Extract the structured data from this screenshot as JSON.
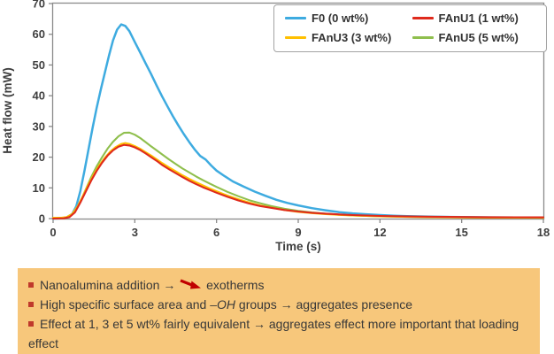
{
  "chart_data": {
    "type": "line",
    "title": "",
    "xlabel": "Time (s)",
    "ylabel": "Heat flow (mW)",
    "xlim": [
      0,
      18
    ],
    "ylim": [
      0,
      70
    ],
    "x_ticks": [
      0,
      3,
      6,
      9,
      12,
      15,
      18
    ],
    "y_ticks": [
      0,
      10,
      20,
      30,
      40,
      50,
      60,
      70
    ],
    "grid": false,
    "legend_position": "top-right",
    "series": [
      {
        "name": "F0 (0 wt%)",
        "color": "#3EABE0",
        "peak": {
          "t": 2.5,
          "value": 63
        },
        "points": [
          [
            0,
            0
          ],
          [
            0.3,
            0.1
          ],
          [
            0.5,
            0.4
          ],
          [
            0.7,
            1.5
          ],
          [
            0.85,
            4
          ],
          [
            1.0,
            9
          ],
          [
            1.15,
            15.5
          ],
          [
            1.3,
            22.5
          ],
          [
            1.45,
            29.5
          ],
          [
            1.6,
            36
          ],
          [
            1.75,
            42
          ],
          [
            1.9,
            47.5
          ],
          [
            2.05,
            53
          ],
          [
            2.2,
            58
          ],
          [
            2.35,
            61.5
          ],
          [
            2.5,
            63.2
          ],
          [
            2.65,
            62.7
          ],
          [
            2.8,
            61
          ],
          [
            3.0,
            57.5
          ],
          [
            3.2,
            54
          ],
          [
            3.4,
            50.5
          ],
          [
            3.6,
            47
          ],
          [
            3.8,
            43.3
          ],
          [
            4.0,
            39.8
          ],
          [
            4.2,
            36.5
          ],
          [
            4.4,
            33.3
          ],
          [
            4.6,
            30.3
          ],
          [
            4.8,
            27.5
          ],
          [
            5.0,
            24.9
          ],
          [
            5.2,
            22.5
          ],
          [
            5.4,
            20.4
          ],
          [
            5.6,
            19.2
          ],
          [
            5.8,
            17.3
          ],
          [
            6.0,
            15.6
          ],
          [
            6.3,
            13.8
          ],
          [
            6.6,
            12.1
          ],
          [
            7.0,
            10.4
          ],
          [
            7.4,
            8.8
          ],
          [
            7.8,
            7.4
          ],
          [
            8.2,
            6.1
          ],
          [
            8.6,
            5.1
          ],
          [
            9.0,
            4.3
          ],
          [
            9.5,
            3.4
          ],
          [
            10,
            2.7
          ],
          [
            10.5,
            2.1
          ],
          [
            11,
            1.7
          ],
          [
            11.5,
            1.4
          ],
          [
            12,
            1.15
          ],
          [
            12.5,
            0.95
          ],
          [
            13,
            0.8
          ],
          [
            14,
            0.6
          ],
          [
            15,
            0.5
          ],
          [
            16,
            0.4
          ],
          [
            17,
            0.35
          ],
          [
            18,
            0.3
          ]
        ]
      },
      {
        "name": "FAnU1 (1 wt%)",
        "color": "#DF2A1C",
        "peak": {
          "t": 2.6,
          "value": 24
        },
        "points": [
          [
            0,
            0
          ],
          [
            0.4,
            0.1
          ],
          [
            0.6,
            0.5
          ],
          [
            0.8,
            2
          ],
          [
            1.0,
            5.2
          ],
          [
            1.2,
            8.8
          ],
          [
            1.4,
            12.4
          ],
          [
            1.6,
            15.5
          ],
          [
            1.8,
            18.2
          ],
          [
            2.0,
            20.5
          ],
          [
            2.2,
            22.2
          ],
          [
            2.4,
            23.4
          ],
          [
            2.6,
            24
          ],
          [
            2.8,
            23.8
          ],
          [
            3.0,
            23.2
          ],
          [
            3.2,
            22.3
          ],
          [
            3.4,
            21.2
          ],
          [
            3.6,
            20
          ],
          [
            3.8,
            18.8
          ],
          [
            4.0,
            17.5
          ],
          [
            4.25,
            16.1
          ],
          [
            4.5,
            14.8
          ],
          [
            4.75,
            13.5
          ],
          [
            5.0,
            12.3
          ],
          [
            5.25,
            11.2
          ],
          [
            5.5,
            10.2
          ],
          [
            5.75,
            9.3
          ],
          [
            6.0,
            8.4
          ],
          [
            6.4,
            7.1
          ],
          [
            6.8,
            5.9
          ],
          [
            7.2,
            4.9
          ],
          [
            7.6,
            4.1
          ],
          [
            8.0,
            3.5
          ],
          [
            8.5,
            2.8
          ],
          [
            9.0,
            2.3
          ],
          [
            9.5,
            1.9
          ],
          [
            10,
            1.6
          ],
          [
            10.5,
            1.35
          ],
          [
            11,
            1.15
          ],
          [
            12,
            0.85
          ],
          [
            13,
            0.7
          ],
          [
            14,
            0.6
          ],
          [
            15,
            0.52
          ],
          [
            16,
            0.46
          ],
          [
            17,
            0.42
          ],
          [
            18,
            0.4
          ]
        ]
      },
      {
        "name": "FAnU3 (3 wt%)",
        "color": "#FFC000",
        "peak": {
          "t": 2.65,
          "value": 24.6
        },
        "points": [
          [
            0,
            0.3
          ],
          [
            0.3,
            0.3
          ],
          [
            0.5,
            0.5
          ],
          [
            0.7,
            1.5
          ],
          [
            0.9,
            4
          ],
          [
            1.1,
            7.5
          ],
          [
            1.3,
            11.2
          ],
          [
            1.5,
            14.5
          ],
          [
            1.7,
            17.4
          ],
          [
            1.9,
            19.8
          ],
          [
            2.1,
            21.8
          ],
          [
            2.3,
            23.3
          ],
          [
            2.5,
            24.3
          ],
          [
            2.65,
            24.6
          ],
          [
            2.8,
            24.3
          ],
          [
            3.0,
            23.6
          ],
          [
            3.2,
            22.7
          ],
          [
            3.4,
            21.6
          ],
          [
            3.6,
            20.5
          ],
          [
            3.8,
            19.3
          ],
          [
            4.0,
            18.1
          ],
          [
            4.25,
            16.7
          ],
          [
            4.5,
            15.4
          ],
          [
            4.75,
            14.1
          ],
          [
            5.0,
            12.9
          ],
          [
            5.25,
            11.8
          ],
          [
            5.5,
            10.8
          ],
          [
            5.75,
            9.8
          ],
          [
            6.0,
            8.9
          ],
          [
            6.4,
            7.5
          ],
          [
            6.8,
            6.3
          ],
          [
            7.2,
            5.2
          ],
          [
            7.6,
            4.3
          ],
          [
            8.0,
            3.6
          ],
          [
            8.5,
            2.8
          ],
          [
            9.0,
            2.2
          ],
          [
            9.5,
            1.8
          ],
          [
            10,
            1.45
          ],
          [
            10.5,
            1.2
          ],
          [
            11,
            1.0
          ],
          [
            12,
            0.72
          ],
          [
            13,
            0.56
          ],
          [
            14,
            0.45
          ],
          [
            15,
            0.38
          ],
          [
            16,
            0.32
          ],
          [
            17,
            0.28
          ],
          [
            18,
            0.25
          ]
        ]
      },
      {
        "name": "FAnU5 (5 wt%)",
        "color": "#8FBF4D",
        "peak": {
          "t": 2.8,
          "value": 28
        },
        "points": [
          [
            0,
            0
          ],
          [
            0.4,
            0.1
          ],
          [
            0.6,
            0.6
          ],
          [
            0.8,
            2.2
          ],
          [
            1.0,
            5.5
          ],
          [
            1.2,
            9.5
          ],
          [
            1.4,
            13.5
          ],
          [
            1.6,
            17
          ],
          [
            1.8,
            20
          ],
          [
            2.0,
            22.8
          ],
          [
            2.2,
            25
          ],
          [
            2.4,
            26.8
          ],
          [
            2.6,
            27.9
          ],
          [
            2.8,
            28
          ],
          [
            3.0,
            27.3
          ],
          [
            3.2,
            26.2
          ],
          [
            3.4,
            24.9
          ],
          [
            3.6,
            23.5
          ],
          [
            3.8,
            22.2
          ],
          [
            4.0,
            20.9
          ],
          [
            4.25,
            19.3
          ],
          [
            4.5,
            17.8
          ],
          [
            4.75,
            16.3
          ],
          [
            5.0,
            15
          ],
          [
            5.25,
            13.7
          ],
          [
            5.5,
            12.5
          ],
          [
            5.75,
            11.4
          ],
          [
            6.0,
            10.3
          ],
          [
            6.4,
            8.7
          ],
          [
            6.8,
            7.3
          ],
          [
            7.2,
            6
          ],
          [
            7.6,
            5
          ],
          [
            8.0,
            4.1
          ],
          [
            8.5,
            3.2
          ],
          [
            9.0,
            2.5
          ],
          [
            9.5,
            2.0
          ],
          [
            10,
            1.6
          ],
          [
            10.5,
            1.3
          ],
          [
            11,
            1.05
          ],
          [
            12,
            0.75
          ],
          [
            13,
            0.6
          ],
          [
            14,
            0.48
          ],
          [
            15,
            0.4
          ],
          [
            16,
            0.33
          ],
          [
            17,
            0.28
          ],
          [
            18,
            0.25
          ]
        ]
      }
    ]
  },
  "legend": {
    "items": [
      "F0 (0 wt%)",
      "FAnU1 (1 wt%)",
      "FAnU3 (3 wt%)",
      "FAnU5 (5 wt%)"
    ]
  },
  "notes_box": {
    "bullets": [
      {
        "segments": [
          {
            "t": "text",
            "v": "Nanoalumina addition → "
          },
          {
            "t": "decrease-arrow"
          },
          {
            "t": "text",
            "v": " exotherms"
          }
        ]
      },
      {
        "segments": [
          {
            "t": "text",
            "v": "High specific surface area and "
          },
          {
            "t": "italic",
            "v": "–OH"
          },
          {
            "t": "text",
            "v": " groups → aggregates presence"
          }
        ]
      },
      {
        "segments": [
          {
            "t": "text",
            "v": "Effect at 1, 3 et 5 wt% fairly equivalent → aggregates effect more important that loading effect"
          }
        ]
      }
    ]
  },
  "theme": {
    "notes_bg": "#F7C77B",
    "bullet_color": "#C0392B",
    "decrease_arrow_color": "#C00000",
    "axis_color": "#8A8A8A",
    "tick_text_color": "#3F3F3F",
    "legend_border": "#A3A3A3"
  }
}
